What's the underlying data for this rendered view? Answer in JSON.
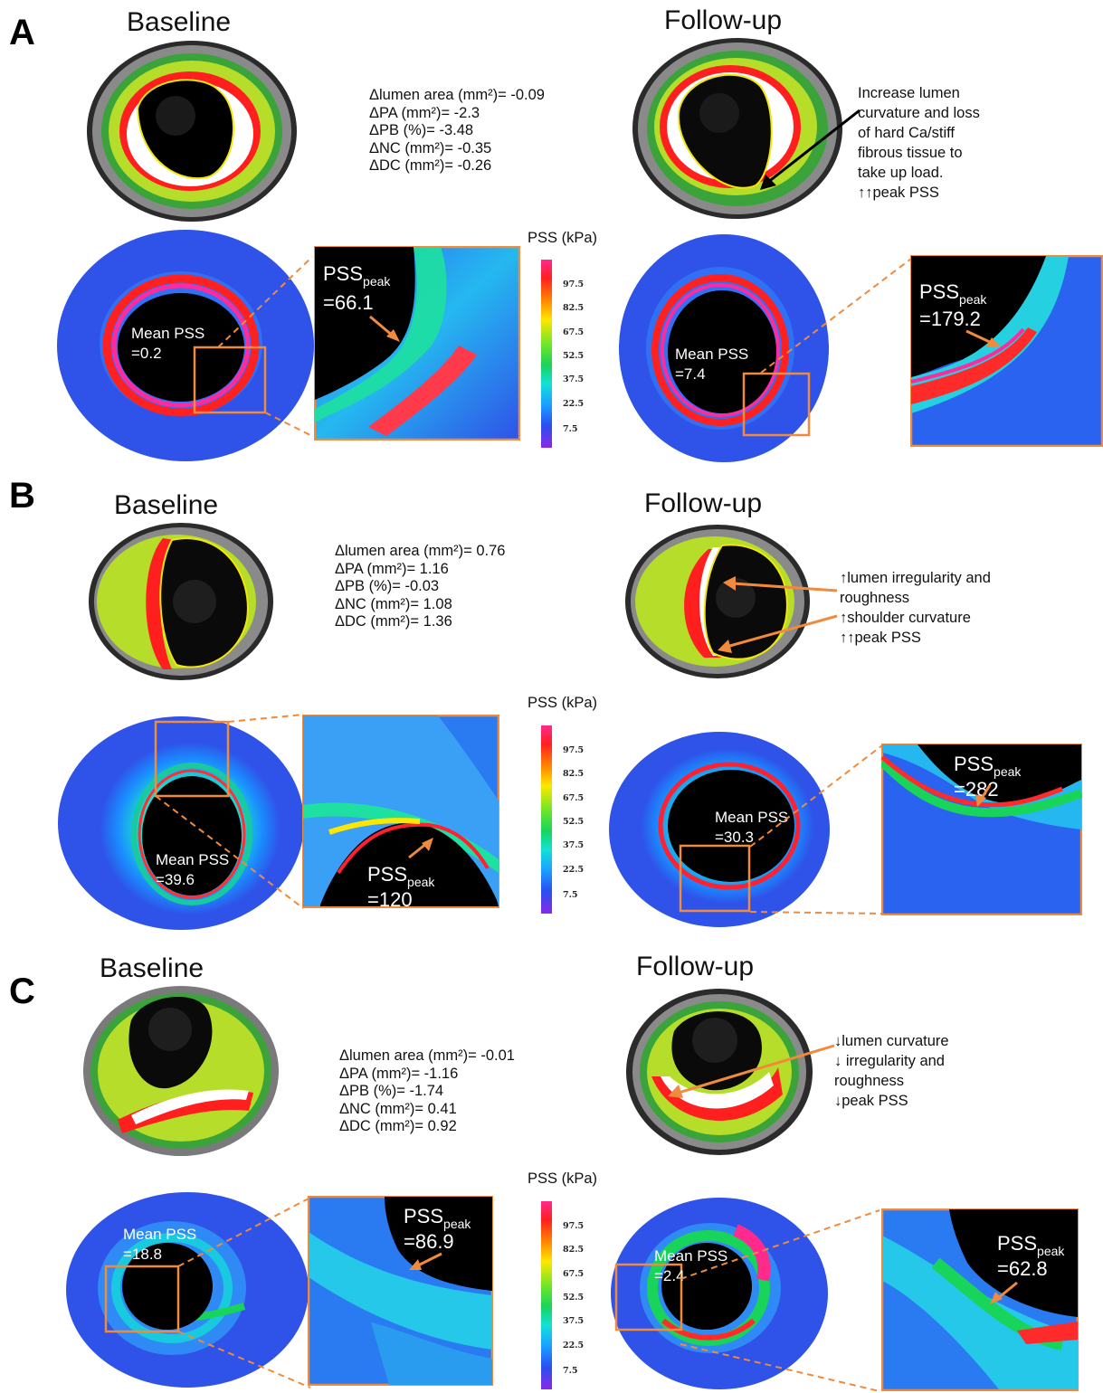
{
  "colors": {
    "accent": "#f08a3c",
    "stress_bg": "#2f52e8",
    "lumen": "#000000",
    "plaque_green": "#b5dd2a"
  },
  "colorbar": {
    "title": "PSS (kPa)",
    "ticks": [
      "97.5",
      "82.5",
      "67.5",
      "52.5",
      "37.5",
      "22.5",
      "7.5"
    ]
  },
  "panels": [
    {
      "letter": "A",
      "baseline": {
        "title": "Baseline",
        "mean_label": "Mean PSS",
        "mean_value": "=0.2",
        "peak_label": "PSS",
        "peak_sub": "peak",
        "peak_value": "=66.1"
      },
      "followup": {
        "title": "Follow-up",
        "mean_label": "Mean PSS",
        "mean_value": "=7.4",
        "peak_label": "PSS",
        "peak_sub": "peak",
        "peak_value": "=179.2"
      },
      "deltas": [
        "Δlumen area (mm²)= -0.09",
        "ΔPA (mm²)= -2.3",
        "ΔPB (%)= -3.48",
        "ΔNC (mm²)= -0.35",
        "ΔDC (mm²)= -0.26"
      ],
      "note": [
        "Increase lumen",
        "curvature and loss",
        "of hard Ca/stiff",
        "fibrous tissue to",
        "take up load.",
        "↑↑peak PSS"
      ]
    },
    {
      "letter": "B",
      "baseline": {
        "title": "Baseline",
        "mean_label": "Mean PSS",
        "mean_value": "=39.6",
        "peak_label": "PSS",
        "peak_sub": "peak",
        "peak_value": "=120"
      },
      "followup": {
        "title": "Follow-up",
        "mean_label": "Mean PSS",
        "mean_value": "=30.3",
        "peak_label": "PSS",
        "peak_sub": "peak",
        "peak_value": "=282"
      },
      "deltas": [
        "Δlumen area (mm²)= 0.76",
        "ΔPA (mm²)= 1.16",
        "ΔPB (%)= -0.03",
        "ΔNC (mm²)= 1.08",
        "ΔDC (mm²)= 1.36"
      ],
      "note": [
        "↑lumen irregularity and",
        "roughness",
        "↑shoulder curvature",
        "↑↑peak PSS"
      ]
    },
    {
      "letter": "C",
      "baseline": {
        "title": "Baseline",
        "mean_label": "Mean PSS",
        "mean_value": "=18.8",
        "peak_label": "PSS",
        "peak_sub": "peak",
        "peak_value": "=86.9"
      },
      "followup": {
        "title": "Follow-up",
        "mean_label": "Mean PSS",
        "mean_value": "=2.4",
        "peak_label": "PSS",
        "peak_sub": "peak",
        "peak_value": "=62.8"
      },
      "deltas": [
        "Δlumen area (mm²)= -0.01",
        "ΔPA (mm²)= -1.16",
        "ΔPB (%)= -1.74",
        "ΔNC (mm²)= 0.41",
        "ΔDC (mm²)= 0.92"
      ],
      "note": [
        "↓lumen curvature",
        "↓ irregularity and",
        "roughness",
        "↓peak PSS"
      ]
    }
  ]
}
